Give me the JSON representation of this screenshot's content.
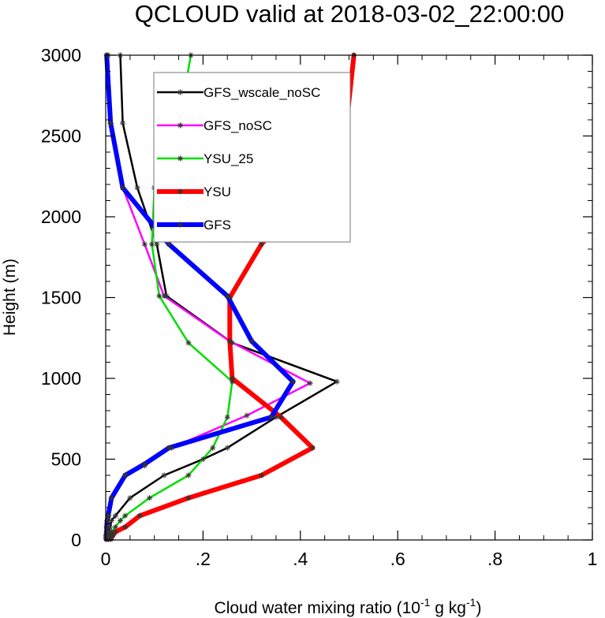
{
  "chart_data": {
    "type": "line",
    "title": "QCLOUD valid at 2018-03-02_22:00:00",
    "xlabel_main": "Cloud water mixing ratio (10",
    "xlabel_exp1": "-1",
    "xlabel_mid": " g kg",
    "xlabel_exp2": "-1",
    "xlabel_end": ")",
    "ylabel": "Height (m)",
    "xlim": [
      0,
      1
    ],
    "ylim": [
      0,
      3000
    ],
    "x_ticks": [
      0,
      0.2,
      0.4,
      0.6,
      0.8,
      1.0
    ],
    "x_tick_labels": [
      "0",
      ".2",
      ".4",
      ".6",
      ".8",
      "1"
    ],
    "y_ticks": [
      0,
      500,
      1000,
      1500,
      2000,
      2500,
      3000
    ],
    "y_tick_labels": [
      "0",
      "500",
      "1000",
      "1500",
      "2000",
      "2500",
      "3000"
    ],
    "grid": false,
    "legend_position": "top-left",
    "series": [
      {
        "name": "GFS_wscale_noSC",
        "color": "#000000",
        "width": 2.5,
        "points": [
          [
            0.004,
            5
          ],
          [
            0.005,
            15
          ],
          [
            0.006,
            30
          ],
          [
            0.007,
            50
          ],
          [
            0.009,
            80
          ],
          [
            0.012,
            120
          ],
          [
            0.02,
            150
          ],
          [
            0.05,
            260
          ],
          [
            0.12,
            400
          ],
          [
            0.2,
            500
          ],
          [
            0.25,
            570
          ],
          [
            0.35,
            760
          ],
          [
            0.475,
            980
          ],
          [
            0.26,
            1220
          ],
          [
            0.125,
            1510
          ],
          [
            0.105,
            1830
          ],
          [
            0.065,
            2180
          ],
          [
            0.035,
            2580
          ],
          [
            0.03,
            3000
          ]
        ]
      },
      {
        "name": "GFS_noSC",
        "color": "#ff00ff",
        "width": 2.5,
        "points": [
          [
            0.001,
            5
          ],
          [
            0.001,
            15
          ],
          [
            0.001,
            30
          ],
          [
            0.002,
            50
          ],
          [
            0.003,
            80
          ],
          [
            0.004,
            120
          ],
          [
            0.006,
            150
          ],
          [
            0.012,
            260
          ],
          [
            0.04,
            400
          ],
          [
            0.08,
            460
          ],
          [
            0.135,
            570
          ],
          [
            0.29,
            770
          ],
          [
            0.42,
            970
          ],
          [
            0.255,
            1230
          ],
          [
            0.12,
            1510
          ],
          [
            0.08,
            1830
          ],
          [
            0.035,
            2180
          ],
          [
            0.01,
            2580
          ],
          [
            0.005,
            3000
          ]
        ]
      },
      {
        "name": "YSU_25",
        "color": "#00dd00",
        "width": 2.5,
        "points": [
          [
            0.006,
            5
          ],
          [
            0.008,
            15
          ],
          [
            0.01,
            30
          ],
          [
            0.012,
            50
          ],
          [
            0.02,
            80
          ],
          [
            0.03,
            120
          ],
          [
            0.04,
            150
          ],
          [
            0.09,
            260
          ],
          [
            0.17,
            400
          ],
          [
            0.22,
            570
          ],
          [
            0.25,
            760
          ],
          [
            0.26,
            980
          ],
          [
            0.17,
            1220
          ],
          [
            0.11,
            1510
          ],
          [
            0.095,
            1830
          ],
          [
            0.1,
            2180
          ],
          [
            0.15,
            2580
          ],
          [
            0.175,
            3000
          ]
        ]
      },
      {
        "name": "YSU",
        "color": "#ff0000",
        "width": 6,
        "points": [
          [
            0.01,
            5
          ],
          [
            0.012,
            15
          ],
          [
            0.015,
            30
          ],
          [
            0.02,
            50
          ],
          [
            0.04,
            80
          ],
          [
            0.07,
            150
          ],
          [
            0.17,
            260
          ],
          [
            0.32,
            400
          ],
          [
            0.425,
            570
          ],
          [
            0.36,
            760
          ],
          [
            0.26,
            1000
          ],
          [
            0.255,
            1230
          ],
          [
            0.255,
            1500
          ],
          [
            0.32,
            1830
          ],
          [
            0.42,
            2180
          ],
          [
            0.495,
            2580
          ],
          [
            0.51,
            3000
          ]
        ]
      },
      {
        "name": "GFS",
        "color": "#0000ff",
        "width": 6,
        "points": [
          [
            0.001,
            5
          ],
          [
            0.001,
            15
          ],
          [
            0.001,
            30
          ],
          [
            0.002,
            50
          ],
          [
            0.002,
            80
          ],
          [
            0.003,
            120
          ],
          [
            0.005,
            150
          ],
          [
            0.012,
            260
          ],
          [
            0.04,
            400
          ],
          [
            0.08,
            470
          ],
          [
            0.13,
            570
          ],
          [
            0.34,
            760
          ],
          [
            0.385,
            980
          ],
          [
            0.3,
            1230
          ],
          [
            0.25,
            1510
          ],
          [
            0.13,
            1830
          ],
          [
            0.035,
            2180
          ],
          [
            0.01,
            2580
          ],
          [
            0.002,
            3000
          ]
        ]
      }
    ]
  }
}
